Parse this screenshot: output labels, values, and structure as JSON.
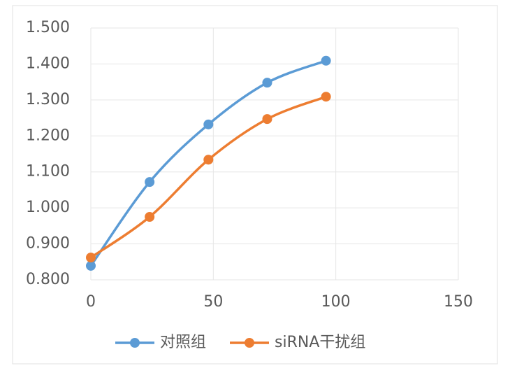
{
  "chart_data": {
    "type": "line",
    "x": [
      0,
      24,
      48,
      72,
      96
    ],
    "series": [
      {
        "name": "对照组",
        "color": "#5b9bd5",
        "values": [
          0.839,
          1.072,
          1.232,
          1.348,
          1.409
        ]
      },
      {
        "name": "siRNA干扰组",
        "color": "#ed7d31",
        "values": [
          0.862,
          0.975,
          1.134,
          1.247,
          1.309
        ]
      }
    ],
    "xlim": [
      0,
      150
    ],
    "xticks": [
      0,
      50,
      100,
      150
    ],
    "ylim": [
      0.8,
      1.5
    ],
    "yticks": [
      {
        "value": 0.8,
        "label": "0.800"
      },
      {
        "value": 0.9,
        "label": "0.900"
      },
      {
        "value": 1.0,
        "label": "1.000"
      },
      {
        "value": 1.1,
        "label": "1.100"
      },
      {
        "value": 1.2,
        "label": "1.200"
      },
      {
        "value": 1.3,
        "label": "1.300"
      },
      {
        "value": 1.4,
        "label": "1.400"
      },
      {
        "value": 1.5,
        "label": "1.500"
      }
    ],
    "grid": true,
    "smooth": true,
    "legend": "bottom"
  }
}
